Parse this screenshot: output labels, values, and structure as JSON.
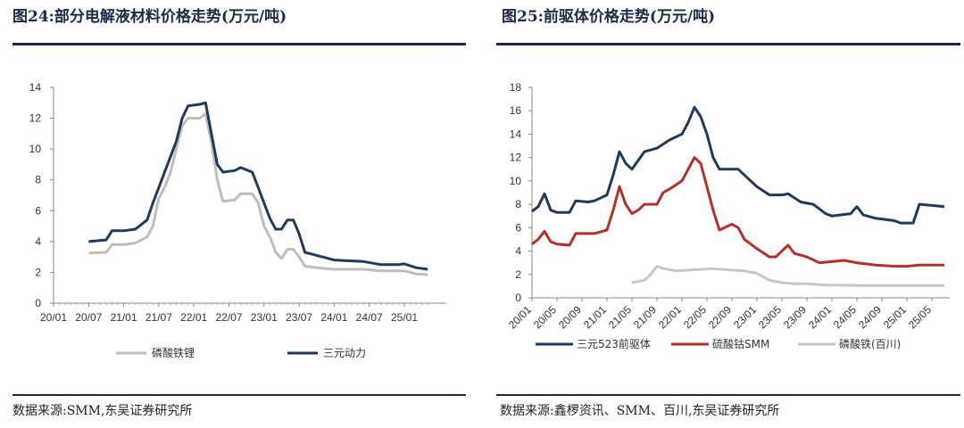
{
  "left": {
    "figure_title": "图24:部分电解液材料价格走势(万元/吨)",
    "source": "数据来源:SMM,东吴证券研究所"
  },
  "right": {
    "figure_title": "图25:前驱体价格走势(万元/吨)",
    "source": "数据来源:鑫椤资讯、SMM、百川,东吴证券研究所"
  },
  "colors": {
    "navy": "#1f3a5f",
    "gray": "#bdbdbd",
    "red": "#b5302a",
    "lightgray": "#c6c6c6"
  },
  "chart_data": [
    {
      "type": "line",
      "title": "",
      "xlabel": "",
      "ylabel": "",
      "ylim": [
        0,
        14
      ],
      "yticks": [
        0,
        2,
        4,
        6,
        8,
        10,
        12,
        14
      ],
      "x_range": [
        "2020-01",
        "2025-05"
      ],
      "xtick_labels": [
        "20/01",
        "20/07",
        "21/01",
        "21/07",
        "22/01",
        "22/07",
        "23/01",
        "23/07",
        "24/01",
        "24/07",
        "25/01"
      ],
      "legend_position": "bottom",
      "grid": false,
      "series": [
        {
          "name": "磷酸铁锂",
          "color": "gray",
          "points": [
            [
              "2020-07",
              3.25
            ],
            [
              "2020-10",
              3.3
            ],
            [
              "2020-11",
              3.8
            ],
            [
              "2021-01",
              3.8
            ],
            [
              "2021-03",
              3.9
            ],
            [
              "2021-05",
              4.3
            ],
            [
              "2021-06",
              5.0
            ],
            [
              "2021-07",
              6.8
            ],
            [
              "2021-08",
              7.5
            ],
            [
              "2021-09",
              8.5
            ],
            [
              "2021-10",
              10.0
            ],
            [
              "2021-11",
              11.5
            ],
            [
              "2021-12",
              12.0
            ],
            [
              "2022-02",
              12.0
            ],
            [
              "2022-03",
              12.3
            ],
            [
              "2022-04",
              10.5
            ],
            [
              "2022-05",
              8.0
            ],
            [
              "2022-06",
              6.6
            ],
            [
              "2022-08",
              6.7
            ],
            [
              "2022-09",
              7.1
            ],
            [
              "2022-11",
              7.1
            ],
            [
              "2022-12",
              6.5
            ],
            [
              "2023-01",
              5.0
            ],
            [
              "2023-02",
              4.3
            ],
            [
              "2023-03",
              3.3
            ],
            [
              "2023-04",
              2.9
            ],
            [
              "2023-05",
              3.5
            ],
            [
              "2023-06",
              3.5
            ],
            [
              "2023-07",
              3.0
            ],
            [
              "2023-08",
              2.4
            ],
            [
              "2023-10",
              2.3
            ],
            [
              "2024-01",
              2.2
            ],
            [
              "2024-06",
              2.2
            ],
            [
              "2024-09",
              2.1
            ],
            [
              "2024-12",
              2.1
            ],
            [
              "2025-01",
              2.1
            ],
            [
              "2025-03",
              1.9
            ],
            [
              "2025-05",
              1.85
            ]
          ]
        },
        {
          "name": "三元动力",
          "color": "navy",
          "points": [
            [
              "2020-07",
              4.0
            ],
            [
              "2020-10",
              4.1
            ],
            [
              "2020-11",
              4.7
            ],
            [
              "2021-01",
              4.7
            ],
            [
              "2021-03",
              4.8
            ],
            [
              "2021-05",
              5.4
            ],
            [
              "2021-06",
              6.5
            ],
            [
              "2021-07",
              7.5
            ],
            [
              "2021-08",
              8.5
            ],
            [
              "2021-09",
              9.5
            ],
            [
              "2021-10",
              10.5
            ],
            [
              "2021-11",
              12.0
            ],
            [
              "2021-12",
              12.8
            ],
            [
              "2022-02",
              12.9
            ],
            [
              "2022-03",
              13.0
            ],
            [
              "2022-04",
              11.0
            ],
            [
              "2022-05",
              9.0
            ],
            [
              "2022-06",
              8.5
            ],
            [
              "2022-08",
              8.6
            ],
            [
              "2022-09",
              8.8
            ],
            [
              "2022-11",
              8.5
            ],
            [
              "2022-12",
              7.5
            ],
            [
              "2023-01",
              6.5
            ],
            [
              "2023-02",
              5.5
            ],
            [
              "2023-03",
              4.8
            ],
            [
              "2023-04",
              4.8
            ],
            [
              "2023-05",
              5.4
            ],
            [
              "2023-06",
              5.4
            ],
            [
              "2023-07",
              4.5
            ],
            [
              "2023-08",
              3.3
            ],
            [
              "2023-10",
              3.1
            ],
            [
              "2024-01",
              2.8
            ],
            [
              "2024-06",
              2.7
            ],
            [
              "2024-09",
              2.5
            ],
            [
              "2024-12",
              2.5
            ],
            [
              "2025-01",
              2.55
            ],
            [
              "2025-03",
              2.3
            ],
            [
              "2025-05",
              2.2
            ]
          ]
        }
      ]
    },
    {
      "type": "line",
      "title": "",
      "xlabel": "",
      "ylabel": "",
      "ylim": [
        0,
        18
      ],
      "yticks": [
        0,
        2,
        4,
        6,
        8,
        10,
        12,
        14,
        16,
        18
      ],
      "x_range": [
        "2020-01",
        "2025-07"
      ],
      "xtick_labels": [
        "20/01",
        "20/05",
        "20/09",
        "21/01",
        "21/05",
        "21/09",
        "22/01",
        "22/05",
        "22/09",
        "23/01",
        "23/05",
        "23/09",
        "24/01",
        "24/05",
        "24/09",
        "25/01",
        "25/05"
      ],
      "legend_position": "bottom",
      "grid": false,
      "series": [
        {
          "name": "三元523前驱体",
          "color": "navy",
          "points": [
            [
              "2020-01",
              7.4
            ],
            [
              "2020-02",
              7.8
            ],
            [
              "2020-03",
              8.9
            ],
            [
              "2020-04",
              7.5
            ],
            [
              "2020-05",
              7.3
            ],
            [
              "2020-07",
              7.3
            ],
            [
              "2020-08",
              8.3
            ],
            [
              "2020-10",
              8.2
            ],
            [
              "2020-11",
              8.3
            ],
            [
              "2021-01",
              8.8
            ],
            [
              "2021-02",
              10.5
            ],
            [
              "2021-03",
              12.5
            ],
            [
              "2021-04",
              11.5
            ],
            [
              "2021-05",
              11.0
            ],
            [
              "2021-07",
              12.5
            ],
            [
              "2021-09",
              12.8
            ],
            [
              "2021-11",
              13.5
            ],
            [
              "2022-01",
              14.0
            ],
            [
              "2022-02",
              15.0
            ],
            [
              "2022-03",
              16.3
            ],
            [
              "2022-04",
              15.5
            ],
            [
              "2022-05",
              14.0
            ],
            [
              "2022-06",
              12.0
            ],
            [
              "2022-07",
              11.0
            ],
            [
              "2022-10",
              11.0
            ],
            [
              "2022-11",
              10.5
            ],
            [
              "2023-01",
              9.5
            ],
            [
              "2023-03",
              8.8
            ],
            [
              "2023-05",
              8.8
            ],
            [
              "2023-06",
              8.9
            ],
            [
              "2023-08",
              8.2
            ],
            [
              "2023-10",
              8.0
            ],
            [
              "2023-12",
              7.2
            ],
            [
              "2024-01",
              7.0
            ],
            [
              "2024-04",
              7.2
            ],
            [
              "2024-05",
              7.8
            ],
            [
              "2024-06",
              7.1
            ],
            [
              "2024-08",
              6.8
            ],
            [
              "2024-11",
              6.6
            ],
            [
              "2024-12",
              6.4
            ],
            [
              "2025-02",
              6.4
            ],
            [
              "2025-03",
              8.0
            ],
            [
              "2025-05",
              7.9
            ],
            [
              "2025-07",
              7.8
            ]
          ]
        },
        {
          "name": "硫酸钴SMM",
          "color": "red",
          "points": [
            [
              "2020-01",
              4.6
            ],
            [
              "2020-02",
              5.0
            ],
            [
              "2020-03",
              5.7
            ],
            [
              "2020-04",
              4.8
            ],
            [
              "2020-05",
              4.6
            ],
            [
              "2020-07",
              4.5
            ],
            [
              "2020-08",
              5.5
            ],
            [
              "2020-10",
              5.5
            ],
            [
              "2020-11",
              5.5
            ],
            [
              "2021-01",
              5.8
            ],
            [
              "2021-02",
              7.5
            ],
            [
              "2021-03",
              9.5
            ],
            [
              "2021-04",
              8.0
            ],
            [
              "2021-05",
              7.2
            ],
            [
              "2021-06",
              7.5
            ],
            [
              "2021-07",
              8.0
            ],
            [
              "2021-09",
              8.0
            ],
            [
              "2021-10",
              9.0
            ],
            [
              "2021-11",
              9.3
            ],
            [
              "2022-01",
              10.0
            ],
            [
              "2022-02",
              11.0
            ],
            [
              "2022-03",
              12.0
            ],
            [
              "2022-04",
              11.5
            ],
            [
              "2022-05",
              9.5
            ],
            [
              "2022-06",
              7.5
            ],
            [
              "2022-07",
              5.8
            ],
            [
              "2022-09",
              6.3
            ],
            [
              "2022-10",
              6.0
            ],
            [
              "2022-11",
              5.0
            ],
            [
              "2023-01",
              4.2
            ],
            [
              "2023-03",
              3.5
            ],
            [
              "2023-04",
              3.5
            ],
            [
              "2023-06",
              4.5
            ],
            [
              "2023-07",
              3.8
            ],
            [
              "2023-09",
              3.5
            ],
            [
              "2023-11",
              3.0
            ],
            [
              "2024-01",
              3.1
            ],
            [
              "2024-03",
              3.2
            ],
            [
              "2024-05",
              3.0
            ],
            [
              "2024-08",
              2.8
            ],
            [
              "2024-11",
              2.7
            ],
            [
              "2025-01",
              2.7
            ],
            [
              "2025-03",
              2.8
            ],
            [
              "2025-07",
              2.8
            ]
          ]
        },
        {
          "name": "磷酸铁(百川)",
          "color": "lightgray",
          "points": [
            [
              "2021-05",
              1.3
            ],
            [
              "2021-07",
              1.5
            ],
            [
              "2021-08",
              2.0
            ],
            [
              "2021-09",
              2.7
            ],
            [
              "2021-10",
              2.5
            ],
            [
              "2021-12",
              2.3
            ],
            [
              "2022-03",
              2.4
            ],
            [
              "2022-06",
              2.5
            ],
            [
              "2022-08",
              2.4
            ],
            [
              "2022-11",
              2.3
            ],
            [
              "2023-01",
              2.1
            ],
            [
              "2023-03",
              1.5
            ],
            [
              "2023-05",
              1.3
            ],
            [
              "2023-07",
              1.2
            ],
            [
              "2023-09",
              1.2
            ],
            [
              "2023-12",
              1.1
            ],
            [
              "2024-06",
              1.05
            ],
            [
              "2024-12",
              1.05
            ],
            [
              "2025-07",
              1.05
            ]
          ]
        }
      ]
    }
  ]
}
